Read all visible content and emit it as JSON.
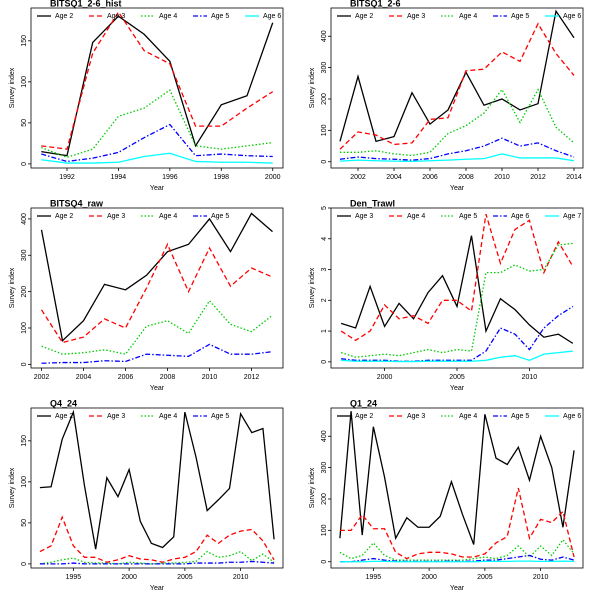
{
  "chart_data": [
    {
      "type": "line",
      "title": "BITSQ1_2-6_hist",
      "xlabel": "Year",
      "ylabel": "Survey index",
      "legend": "top-left",
      "x": [
        1991,
        1992,
        1993,
        1994,
        1995,
        1996,
        1997,
        1998,
        1999,
        2000
      ],
      "xlim": [
        1990.6,
        2000.4
      ],
      "xticks": [
        1992,
        1994,
        1996,
        1998,
        2000
      ],
      "ylim": [
        -5,
        190
      ],
      "yticks": [
        0,
        50,
        100,
        150
      ],
      "series": [
        {
          "name": "Age 2",
          "color": "#000000",
          "linestyle": "solid",
          "values": [
            15,
            10,
            148,
            180,
            158,
            125,
            22,
            72,
            83,
            172
          ]
        },
        {
          "name": "Age 3",
          "color": "#ff0000",
          "linestyle": "dashed",
          "values": [
            22,
            18,
            135,
            185,
            138,
            122,
            46,
            46,
            68,
            88
          ]
        },
        {
          "name": "Age 4",
          "color": "#00cc00",
          "linestyle": "dotted",
          "values": [
            20,
            8,
            18,
            58,
            68,
            90,
            22,
            18,
            22,
            26
          ]
        },
        {
          "name": "Age 5",
          "color": "#0000ff",
          "linestyle": "dashdot",
          "values": [
            12,
            3,
            7,
            14,
            32,
            48,
            10,
            12,
            10,
            9
          ]
        },
        {
          "name": "Age 6",
          "color": "#00ffff",
          "linestyle": "solid",
          "values": [
            5,
            1,
            1,
            2,
            9,
            13,
            3,
            2,
            2,
            1
          ]
        }
      ]
    },
    {
      "type": "line",
      "title": "BITSQ1_2-6",
      "xlabel": "Year",
      "ylabel": "Survey index",
      "legend": "top-left",
      "x": [
        2001,
        2002,
        2003,
        2004,
        2005,
        2006,
        2007,
        2008,
        2009,
        2010,
        2011,
        2012,
        2013,
        2014
      ],
      "xlim": [
        2000.5,
        2014.5
      ],
      "xticks": [
        2002,
        2004,
        2006,
        2008,
        2010,
        2012,
        2014
      ],
      "ylim": [
        -20,
        490
      ],
      "yticks": [
        0,
        100,
        200,
        300,
        400
      ],
      "series": [
        {
          "name": "Age 2",
          "color": "#000000",
          "linestyle": "solid",
          "values": [
            65,
            272,
            65,
            80,
            220,
            120,
            165,
            285,
            180,
            200,
            165,
            185,
            480,
            395
          ]
        },
        {
          "name": "Age 3",
          "color": "#ff0000",
          "linestyle": "dashed",
          "values": [
            40,
            95,
            85,
            55,
            60,
            135,
            140,
            290,
            295,
            350,
            320,
            440,
            345,
            275
          ]
        },
        {
          "name": "Age 4",
          "color": "#00cc00",
          "linestyle": "dotted",
          "values": [
            30,
            30,
            35,
            25,
            20,
            30,
            90,
            115,
            155,
            230,
            125,
            230,
            110,
            60
          ]
        },
        {
          "name": "Age 5",
          "color": "#0000ff",
          "linestyle": "dashdot",
          "values": [
            8,
            15,
            10,
            8,
            5,
            10,
            25,
            35,
            50,
            75,
            50,
            60,
            35,
            15
          ]
        },
        {
          "name": "Age 6",
          "color": "#00ffff",
          "linestyle": "solid",
          "values": [
            2,
            5,
            3,
            2,
            1,
            3,
            5,
            8,
            10,
            25,
            12,
            12,
            12,
            3
          ]
        }
      ]
    },
    {
      "type": "line",
      "title": "BITSQ4_raw",
      "xlabel": "Year",
      "ylabel": "Survey index",
      "legend": "top-left",
      "x": [
        2002,
        2003,
        2004,
        2005,
        2006,
        2007,
        2008,
        2009,
        2010,
        2011,
        2012,
        2013
      ],
      "xlim": [
        2001.5,
        2013.5
      ],
      "xticks": [
        2002,
        2004,
        2006,
        2008,
        2010,
        2012
      ],
      "ylim": [
        -10,
        430
      ],
      "yticks": [
        0,
        100,
        200,
        300,
        400
      ],
      "series": [
        {
          "name": "Age 2",
          "color": "#000000",
          "linestyle": "solid",
          "values": [
            370,
            65,
            120,
            220,
            205,
            245,
            310,
            330,
            400,
            310,
            415,
            365
          ]
        },
        {
          "name": "Age 3",
          "color": "#ff0000",
          "linestyle": "dashed",
          "values": [
            150,
            60,
            75,
            125,
            100,
            210,
            330,
            200,
            320,
            215,
            265,
            240
          ]
        },
        {
          "name": "Age 4",
          "color": "#00cc00",
          "linestyle": "dotted",
          "values": [
            50,
            28,
            32,
            40,
            28,
            105,
            120,
            85,
            175,
            110,
            90,
            135
          ]
        },
        {
          "name": "Age 5",
          "color": "#0000ff",
          "linestyle": "dashdot",
          "values": [
            3,
            5,
            5,
            10,
            8,
            28,
            25,
            22,
            55,
            28,
            28,
            35
          ]
        }
      ]
    },
    {
      "type": "line",
      "title": "Den_Trawl",
      "xlabel": "Year",
      "ylabel": "Survey index",
      "legend": "top-left",
      "x": [
        1997,
        1998,
        1999,
        2000,
        2001,
        2002,
        2003,
        2004,
        2005,
        2006,
        2007,
        2008,
        2009,
        2010,
        2011,
        2012,
        2013
      ],
      "xlim": [
        1996.3,
        2013.7
      ],
      "xticks": [
        2000,
        2005,
        2010
      ],
      "ylim": [
        -0.2,
        5
      ],
      "yticks": [
        0,
        1,
        2,
        3,
        4,
        5
      ],
      "series": [
        {
          "name": "Age 3",
          "color": "#000000",
          "linestyle": "solid",
          "values": [
            1.25,
            1.1,
            2.45,
            1.15,
            1.9,
            1.4,
            2.25,
            2.8,
            1.8,
            4.1,
            1.0,
            2.05,
            1.7,
            1.2,
            0.8,
            0.9,
            0.6
          ]
        },
        {
          "name": "Age 4",
          "color": "#ff0000",
          "linestyle": "dashed",
          "values": [
            1.0,
            0.7,
            1.0,
            1.85,
            1.4,
            1.5,
            1.25,
            2.0,
            2.0,
            1.65,
            4.8,
            3.2,
            4.3,
            4.6,
            2.9,
            3.9,
            3.1
          ]
        },
        {
          "name": "Age 5",
          "color": "#00cc00",
          "linestyle": "dotted",
          "values": [
            0.3,
            0.15,
            0.2,
            0.25,
            0.2,
            0.3,
            0.4,
            0.3,
            0.4,
            0.35,
            2.9,
            2.9,
            3.15,
            2.95,
            3.0,
            3.8,
            3.85
          ]
        },
        {
          "name": "Age 6",
          "color": "#0000ff",
          "linestyle": "dashdot",
          "values": [
            0.1,
            0.05,
            0.05,
            0.05,
            0.02,
            0.02,
            0.05,
            0.05,
            0.05,
            0.05,
            0.35,
            1.1,
            0.9,
            0.4,
            1.1,
            1.5,
            1.8
          ]
        },
        {
          "name": "Age 7",
          "color": "#00ffff",
          "linestyle": "solid",
          "values": [
            0.05,
            0.02,
            0.02,
            0.02,
            0.01,
            0.01,
            0.02,
            0.02,
            0.02,
            0.02,
            0.05,
            0.15,
            0.2,
            0.05,
            0.25,
            0.3,
            0.35
          ]
        }
      ]
    },
    {
      "type": "line",
      "title": "Q4_24",
      "xlabel": "Year",
      "ylabel": "Survey index",
      "legend": "top-left",
      "x": [
        1992,
        1993,
        1994,
        1995,
        1996,
        1997,
        1998,
        1999,
        2000,
        2001,
        2002,
        2003,
        2004,
        2005,
        2006,
        2007,
        2008,
        2009,
        2010,
        2011,
        2012,
        2013
      ],
      "xlim": [
        1991.2,
        2013.8
      ],
      "xticks": [
        1995,
        2000,
        2005,
        2010
      ],
      "ylim": [
        -5,
        190
      ],
      "yticks": [
        0,
        50,
        100,
        150
      ],
      "series": [
        {
          "name": "Age 2",
          "color": "#000000",
          "linestyle": "solid",
          "values": [
            93,
            94,
            152,
            185,
            95,
            18,
            105,
            82,
            115,
            52,
            25,
            20,
            33,
            185,
            130,
            65,
            78,
            92,
            183,
            160,
            165,
            30
          ]
        },
        {
          "name": "Age 3",
          "color": "#ff0000",
          "linestyle": "dashed",
          "values": [
            15,
            22,
            57,
            22,
            8,
            8,
            2,
            5,
            10,
            6,
            5,
            2,
            6,
            8,
            15,
            35,
            25,
            35,
            40,
            42,
            28,
            5
          ]
        },
        {
          "name": "Age 4",
          "color": "#00cc00",
          "linestyle": "dotted",
          "values": [
            0,
            2,
            5,
            7,
            2,
            1,
            1,
            0,
            2,
            1,
            0,
            1,
            1,
            2,
            3,
            15,
            8,
            10,
            15,
            4,
            12,
            2
          ]
        },
        {
          "name": "Age 5",
          "color": "#0000ff",
          "linestyle": "dashdot",
          "values": [
            0,
            0,
            0,
            1,
            0,
            0,
            0,
            0,
            0,
            0,
            0,
            0,
            0,
            0,
            1,
            1,
            1,
            2,
            2,
            3,
            2,
            1
          ]
        }
      ]
    },
    {
      "type": "line",
      "title": "Q1_24",
      "xlabel": "Year",
      "ylabel": "Survey index",
      "legend": "top-left",
      "x": [
        1992,
        1993,
        1994,
        1995,
        1996,
        1997,
        1998,
        1999,
        2000,
        2001,
        2002,
        2003,
        2004,
        2005,
        2006,
        2007,
        2008,
        2009,
        2010,
        2011,
        2012,
        2013
      ],
      "xlim": [
        1991.2,
        2013.8
      ],
      "xticks": [
        1995,
        2000,
        2005,
        2010
      ],
      "ylim": [
        -20,
        490
      ],
      "yticks": [
        0,
        100,
        200,
        300,
        400
      ],
      "series": [
        {
          "name": "Age 2",
          "color": "#000000",
          "linestyle": "solid",
          "values": [
            75,
            480,
            85,
            430,
            270,
            75,
            140,
            110,
            110,
            145,
            255,
            150,
            55,
            470,
            330,
            310,
            365,
            260,
            400,
            300,
            110,
            355
          ]
        },
        {
          "name": "Age 3",
          "color": "#ff0000",
          "linestyle": "dashed",
          "values": [
            100,
            100,
            150,
            105,
            105,
            30,
            10,
            25,
            30,
            30,
            25,
            15,
            15,
            25,
            60,
            80,
            235,
            75,
            135,
            125,
            160,
            15
          ]
        },
        {
          "name": "Age 4",
          "color": "#00cc00",
          "linestyle": "dotted",
          "values": [
            30,
            10,
            20,
            60,
            20,
            5,
            5,
            5,
            5,
            5,
            5,
            5,
            10,
            15,
            10,
            20,
            50,
            15,
            50,
            20,
            70,
            25
          ]
        },
        {
          "name": "Age 5",
          "color": "#0000ff",
          "linestyle": "dashdot",
          "values": [
            0,
            0,
            5,
            10,
            5,
            2,
            1,
            1,
            1,
            1,
            2,
            1,
            2,
            5,
            5,
            10,
            15,
            20,
            8,
            5,
            15,
            5
          ]
        },
        {
          "name": "Age 6",
          "color": "#00ffff",
          "linestyle": "solid",
          "values": [
            0,
            0,
            0,
            1,
            1,
            0,
            0,
            0,
            0,
            0,
            0,
            0,
            0,
            1,
            1,
            1,
            2,
            2,
            1,
            1,
            2,
            1
          ]
        }
      ]
    }
  ]
}
